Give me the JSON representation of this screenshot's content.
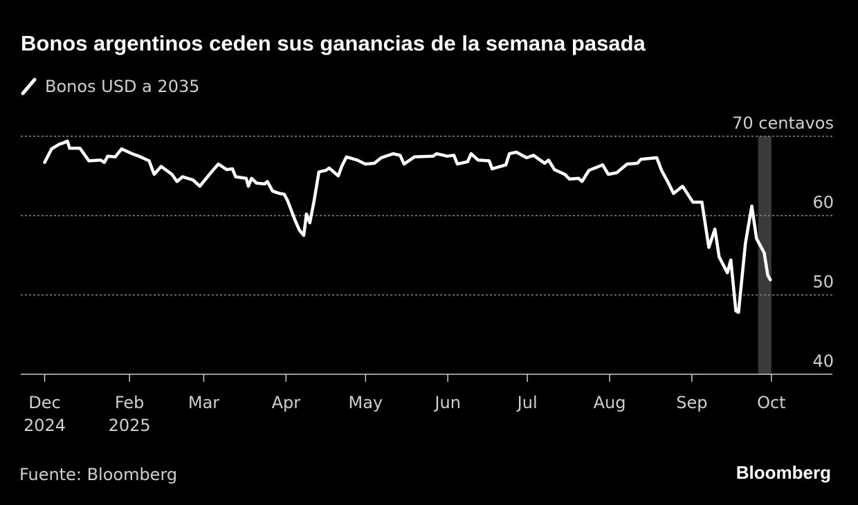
{
  "chart_data": {
    "type": "line",
    "title": "Bonos argentinos ceden sus ganancias de la semana pasada",
    "source": "Fuente: Bloomberg",
    "brand": "Bloomberg",
    "xlim": [
      -9,
      297
    ],
    "xticks": [
      {
        "value": 0,
        "label": "Dec\n2024"
      },
      {
        "value": 32,
        "label": "Feb\n2025"
      },
      {
        "value": 60,
        "label": "Mar"
      },
      {
        "value": 91,
        "label": "Apr"
      },
      {
        "value": 121,
        "label": "May"
      },
      {
        "value": 152,
        "label": "Jun"
      },
      {
        "value": 182,
        "label": "Jul"
      },
      {
        "value": 213,
        "label": "Aug"
      },
      {
        "value": 244,
        "label": "Sep"
      },
      {
        "value": 274,
        "label": "Oct"
      }
    ],
    "ylim": [
      40,
      70
    ],
    "yticks": [
      40,
      50,
      60,
      {
        "value": 70,
        "label": "70 centavos"
      }
    ],
    "grid": true,
    "highlight_xrange": [
      269,
      274
    ],
    "highlight_color": "#3a3a3a",
    "x": [
      0,
      2.6,
      5.5,
      7.3,
      8.6,
      9.4,
      13.3,
      16.7,
      21.1,
      22.5,
      23.8,
      26.6,
      29,
      33,
      35.5,
      39.4,
      41.3,
      43.9,
      48,
      49.9,
      52,
      55.9,
      58.5,
      62.4,
      65.5,
      68.7,
      70.8,
      72,
      76,
      76.8,
      78,
      79.9,
      83,
      84,
      85.9,
      88.5,
      90.3,
      91.6,
      94.3,
      96,
      97.7,
      98.7,
      100,
      101.6,
      103.4,
      106,
      107.3,
      110.7,
      112,
      113.8,
      117.8,
      120.9,
      124.3,
      126.9,
      131.4,
      134,
      135.5,
      139.4,
      146.5,
      147.8,
      151.7,
      154.3,
      155.6,
      159.5,
      160.8,
      163.4,
      167.6,
      168.7,
      173.9,
      175.2,
      177.8,
      181.7,
      184.3,
      188.5,
      190,
      192.2,
      196.1,
      197.9,
      201.3,
      202.6,
      205.2,
      210.4,
      212.5,
      215.7,
      219.6,
      223.5,
      224.8,
      230.8,
      232.6,
      235.2,
      237.1,
      240.5,
      244.4,
      247.8,
      250.4,
      252.7,
      254.3,
      257.4,
      258.7,
      260.6,
      261.6,
      264.2,
      266.6,
      268.4,
      271.3,
      272.6,
      273.6
    ],
    "series": [
      {
        "name": "Bonos USD a 2035",
        "color": "#ffffff",
        "values": [
          66.7,
          68.4,
          69.0,
          69.2,
          69.4,
          68.5,
          68.5,
          66.9,
          67.0,
          66.7,
          67.5,
          67.4,
          68.4,
          67.8,
          67.5,
          66.9,
          65.2,
          66.2,
          65.2,
          64.3,
          64.9,
          64.5,
          63.7,
          65.3,
          66.5,
          65.8,
          65.9,
          64.9,
          64.7,
          63.7,
          64.7,
          64.1,
          64.0,
          64.3,
          63.1,
          62.8,
          62.7,
          61.9,
          59.5,
          58.2,
          57.5,
          60.2,
          59.1,
          61.9,
          65.5,
          65.7,
          66.0,
          65.0,
          66.2,
          67.4,
          67.0,
          66.5,
          66.6,
          67.3,
          67.8,
          67.6,
          66.5,
          67.4,
          67.5,
          67.8,
          67.5,
          67.6,
          66.5,
          66.8,
          67.8,
          67.0,
          66.9,
          65.9,
          66.4,
          67.8,
          68.0,
          67.3,
          67.6,
          66.6,
          67.0,
          65.8,
          65.2,
          64.6,
          64.7,
          64.3,
          65.7,
          66.4,
          65.2,
          65.4,
          66.5,
          66.6,
          67.1,
          67.3,
          65.7,
          64.1,
          62.8,
          63.7,
          61.7,
          61.7,
          56.0,
          58.3,
          54.8,
          52.8,
          54.4,
          48.0,
          47.8,
          56.5,
          61.2,
          57.1,
          55.3,
          52.5,
          51.9
        ]
      }
    ]
  }
}
